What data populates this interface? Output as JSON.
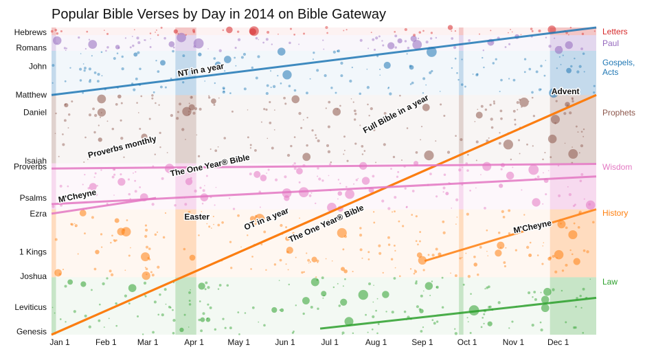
{
  "chart_data": {
    "type": "scatter",
    "title": "Popular Bible Verses by Day in 2014 on Bible Gateway",
    "xlabel": "",
    "ylabel": "",
    "x_axis": {
      "ticks": [
        "Jan 1",
        "Feb 1",
        "Mar 1",
        "Apr 1",
        "May 1",
        "Jun 1",
        "Jul 1",
        "Aug 1",
        "Sep 1",
        "Oct 1",
        "Nov 1",
        "Dec 1"
      ],
      "tick_days": [
        0,
        31,
        59,
        90,
        120,
        151,
        181,
        212,
        243,
        273,
        304,
        334
      ],
      "range_days": [
        0,
        365
      ]
    },
    "y_axis": {
      "note": "canonical order of Bible books, Genesis at bottom, Revelation at top (0 = Genesis 1:1, 1 = Revelation 22:21)",
      "range": [
        0,
        1
      ],
      "book_labels": [
        {
          "label": "Genesis",
          "pos": 0.01
        },
        {
          "label": "Leviticus",
          "pos": 0.09
        },
        {
          "label": "Joshua",
          "pos": 0.19
        },
        {
          "label": "1 Kings",
          "pos": 0.27
        },
        {
          "label": "Ezra",
          "pos": 0.394
        },
        {
          "label": "Psalms",
          "pos": 0.445
        },
        {
          "label": "Proverbs",
          "pos": 0.547
        },
        {
          "label": "Isaiah",
          "pos": 0.566
        },
        {
          "label": "Daniel",
          "pos": 0.724
        },
        {
          "label": "Matthew",
          "pos": 0.781
        },
        {
          "label": "John",
          "pos": 0.874
        },
        {
          "label": "Romans",
          "pos": 0.934
        },
        {
          "label": "Hebrews",
          "pos": 0.984
        }
      ]
    },
    "legend": {
      "placement": "right",
      "entries": [
        {
          "name": "Letters",
          "color": "#d62728"
        },
        {
          "name": "Paul",
          "color": "#9467bd"
        },
        {
          "name": "Gospels, Acts",
          "color": "#1f77b4"
        },
        {
          "name": "Prophets",
          "color": "#8c564b"
        },
        {
          "name": "Wisdom",
          "color": "#e377c2"
        },
        {
          "name": "History",
          "color": "#ff7f0e"
        },
        {
          "name": "Law",
          "color": "#2ca02c"
        }
      ]
    },
    "series": [
      {
        "name": "Law",
        "color": "#2ca02c",
        "range": [
          0.0,
          0.187
        ]
      },
      {
        "name": "History",
        "color": "#ff7f0e",
        "range": [
          0.187,
          0.408
        ]
      },
      {
        "name": "Wisdom",
        "color": "#e377c2",
        "range": [
          0.408,
          0.558
        ]
      },
      {
        "name": "Prophets",
        "color": "#8c564b",
        "range": [
          0.558,
          0.78
        ]
      },
      {
        "name": "Gospels, Acts",
        "color": "#1f77b4",
        "range": [
          0.78,
          0.924
        ]
      },
      {
        "name": "Paul",
        "color": "#9467bd",
        "range": [
          0.924,
          0.975
        ]
      },
      {
        "name": "Letters",
        "color": "#d62728",
        "range": [
          0.975,
          1.0
        ]
      }
    ],
    "reading_plans": [
      {
        "name": "Full Bible in a year",
        "color": "#8c564b",
        "points": [
          [
            0,
            0.0
          ],
          [
            365,
            0.78
          ]
        ]
      },
      {
        "name": "NT in a year",
        "color": "#1f77b4",
        "points": [
          [
            0,
            0.78
          ],
          [
            365,
            1.0
          ]
        ]
      },
      {
        "name": "OT in a year",
        "color": "#ff7f0e",
        "points": [
          [
            0,
            0.0
          ],
          [
            365,
            0.78
          ]
        ]
      },
      {
        "name": "The One Year® Bible (OT)",
        "color": "#ff7f0e",
        "points": [
          [
            0,
            0.0
          ],
          [
            365,
            0.78
          ]
        ]
      },
      {
        "name": "The One Year® Bible (Psalms)",
        "color": "#e377c2",
        "points": [
          [
            0,
            0.425
          ],
          [
            365,
            0.515
          ]
        ]
      },
      {
        "name": "Proverbs monthly",
        "color": "#e377c2",
        "points": [
          [
            0,
            0.541
          ],
          [
            365,
            0.556
          ]
        ]
      },
      {
        "name": "M'Cheyne (Ezra–Psalms)",
        "color": "#e377c2",
        "points": [
          [
            0,
            0.394
          ],
          [
            70,
            0.445
          ]
        ]
      },
      {
        "name": "M'Cheyne (History)",
        "color": "#ff7f0e",
        "points": [
          [
            250,
            0.24
          ],
          [
            365,
            0.408
          ]
        ]
      },
      {
        "name": "M'Cheyne (Law)",
        "color": "#2ca02c",
        "points": [
          [
            180,
            0.02
          ],
          [
            365,
            0.12
          ]
        ]
      }
    ],
    "annotations": [
      {
        "text": "NT in a year",
        "day": 85,
        "pos": 0.84
      },
      {
        "text": "Advent",
        "day": 335,
        "pos": 0.783
      },
      {
        "text": "Proverbs monthly",
        "day": 25,
        "pos": 0.575
      },
      {
        "text": "Full Bible in a year",
        "day": 210,
        "pos": 0.655
      },
      {
        "text": "The One Year® Bible",
        "day": 80,
        "pos": 0.515
      },
      {
        "text": "M'Cheyne",
        "day": 5,
        "pos": 0.43
      },
      {
        "text": "Easter",
        "day": 89,
        "pos": 0.375
      },
      {
        "text": "OT in a year",
        "day": 130,
        "pos": 0.34
      },
      {
        "text": "The One Year® Bible",
        "day": 160,
        "pos": 0.3
      },
      {
        "text": "M'Cheyne",
        "day": 310,
        "pos": 0.33
      }
    ]
  }
}
